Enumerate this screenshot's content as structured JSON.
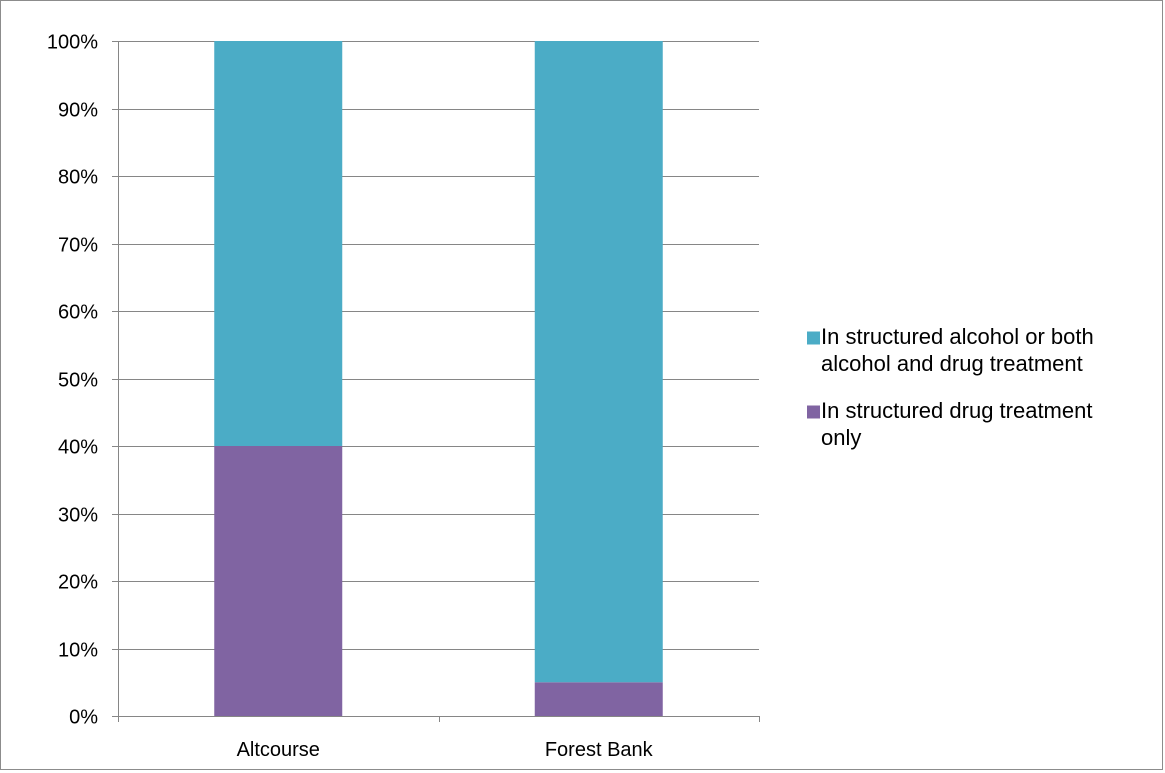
{
  "chart_data": {
    "type": "bar",
    "stacked": true,
    "percent": true,
    "categories": [
      "Altcourse",
      "Forest Bank"
    ],
    "series": [
      {
        "name": "In structured drug treatment only",
        "values": [
          40,
          5
        ],
        "color": "#8064a2"
      },
      {
        "name": "In structured alcohol or both alcohol and drug treatment",
        "values": [
          60,
          95
        ],
        "color": "#4bacc6"
      }
    ],
    "ylim": [
      0,
      100
    ],
    "yticks": [
      0,
      10,
      20,
      30,
      40,
      50,
      60,
      70,
      80,
      90,
      100
    ],
    "ytick_labels": [
      "0%",
      "10%",
      "20%",
      "30%",
      "40%",
      "50%",
      "60%",
      "70%",
      "80%",
      "90%",
      "100%"
    ],
    "grid": true,
    "gridline_color": "#868686",
    "legend_position": "right",
    "legend": [
      {
        "series": 1,
        "lines": [
          "In structured alcohol or both",
          "alcohol and drug treatment"
        ]
      },
      {
        "series": 0,
        "lines": [
          "In structured drug treatment",
          "only"
        ]
      }
    ]
  }
}
